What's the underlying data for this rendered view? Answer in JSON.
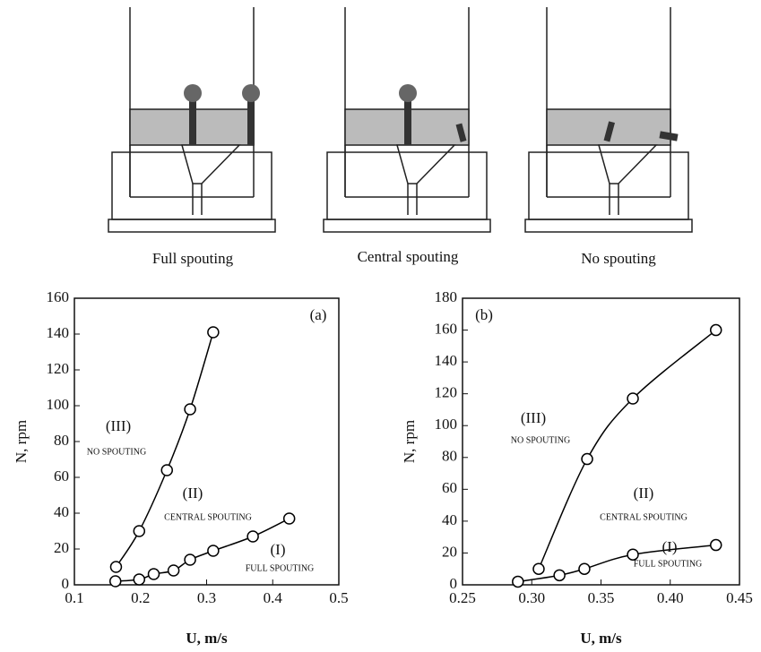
{
  "diagrams": {
    "captions": [
      "Full spouting",
      "Central spouting",
      "No spouting"
    ]
  },
  "chart_data": [
    {
      "type": "scatter-line",
      "xlabel": "U, m/s",
      "ylabel": "N, rpm",
      "xlim": [
        0.1,
        0.5
      ],
      "xticks": [
        0.1,
        0.2,
        0.3,
        0.4,
        0.5
      ],
      "ylim": [
        0,
        160
      ],
      "yticks": [
        0,
        20,
        40,
        60,
        80,
        100,
        120,
        140,
        160
      ],
      "annotations": [
        "(a)",
        "(III)",
        "NO SPOUTING",
        "(II)",
        "CENTRAL SPOUTING",
        "(I)",
        "FULL SPOUTING"
      ],
      "series": [
        {
          "color": "#000000",
          "x": [
            0.163,
            0.198,
            0.24,
            0.275,
            0.31
          ],
          "values": [
            10,
            30,
            64,
            98,
            141
          ]
        },
        {
          "color": "#000000",
          "x": [
            0.162,
            0.198,
            0.22,
            0.25,
            0.275,
            0.31,
            0.37,
            0.425
          ],
          "values": [
            2,
            3,
            6,
            8,
            14,
            19,
            27,
            37
          ]
        }
      ]
    },
    {
      "type": "scatter-line",
      "xlabel": "U, m/s",
      "ylabel": "N, rpm",
      "xlim": [
        0.25,
        0.45
      ],
      "xticks": [
        0.25,
        {
          "value": 0.3,
          "label": "0.30"
        },
        0.35,
        {
          "value": 0.4,
          "label": "0.40"
        },
        0.45
      ],
      "ylim": [
        0,
        180
      ],
      "yticks": [
        0,
        20,
        40,
        60,
        80,
        100,
        120,
        140,
        160,
        180
      ],
      "annotations": [
        "(b)",
        "(III)",
        "NO SPOUTING",
        "(II)",
        "CENTRAL SPOUTING",
        "(I)",
        "FULL SPOUTING"
      ],
      "series": [
        {
          "color": "#000000",
          "x": [
            0.305,
            0.34,
            0.373,
            0.433
          ],
          "values": [
            10,
            79,
            117,
            160
          ]
        },
        {
          "color": "#000000",
          "x": [
            0.29,
            0.32,
            0.338,
            0.373,
            0.433
          ],
          "values": [
            2,
            6,
            10,
            19,
            25
          ]
        }
      ]
    }
  ]
}
